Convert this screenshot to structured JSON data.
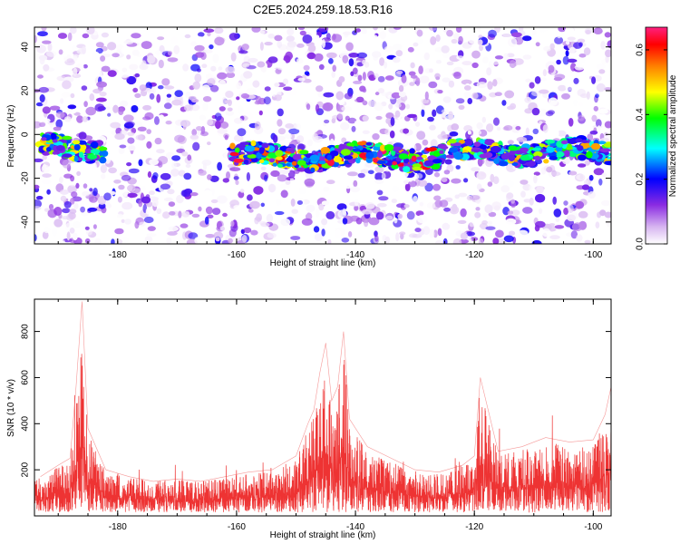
{
  "title": "C2E5.2024.259.18.53.R16",
  "chart_data": [
    {
      "type": "heatmap",
      "title": "C2E5.2024.259.18.53.R16",
      "xlabel": "Height of straight line (km)",
      "ylabel": "Frequency (Hz)",
      "xlim": [
        -194,
        -97
      ],
      "ylim": [
        -50,
        49
      ],
      "xticks": [
        -180,
        -160,
        -140,
        -120,
        -100
      ],
      "yticks": [
        -40,
        -20,
        0,
        20,
        40
      ],
      "colorbar": {
        "label": "Normalized spectral amplitude",
        "range": [
          0.0,
          0.67
        ],
        "ticks": [
          0.0,
          0.2,
          0.4,
          0.6
        ],
        "tick_labels": [
          "0.0",
          "0.2",
          "0.4",
          "0.6"
        ],
        "colors": [
          "#ffffff",
          "#d6b3f0",
          "#8a2be2",
          "#0000ff",
          "#00ffff",
          "#00ff00",
          "#ffff00",
          "#ff8000",
          "#ff0000",
          "#ff2080"
        ]
      },
      "bands": [
        {
          "x": [
            -193,
            -182
          ],
          "freq": -6,
          "peak": 0.42
        },
        {
          "x": [
            -161,
            -125
          ],
          "freq": -10,
          "peak": 0.55
        },
        {
          "x": [
            -124,
            -97
          ],
          "freq": -8,
          "peak": 0.42
        }
      ]
    },
    {
      "type": "line",
      "xlabel": "Height of straight line (km)",
      "ylabel": "SNR (10 * v/v)",
      "xlim": [
        -194,
        -97
      ],
      "ylim": [
        0,
        940
      ],
      "xticks": [
        -180,
        -160,
        -140,
        -120,
        -100
      ],
      "yticks": [
        200,
        400,
        600,
        800
      ],
      "color": "#ee3333",
      "x": [
        -193,
        -190,
        -188,
        -187,
        -186,
        -185,
        -182,
        -178,
        -174,
        -170,
        -166,
        -162,
        -158,
        -154,
        -150,
        -148,
        -147,
        -146,
        -145,
        -144,
        -143,
        -142,
        -141,
        -138,
        -134,
        -130,
        -126,
        -122,
        -120,
        -119,
        -116,
        -112,
        -108,
        -104,
        -100,
        -98,
        -97
      ],
      "values": [
        170,
        220,
        250,
        560,
        930,
        380,
        200,
        170,
        150,
        160,
        150,
        170,
        190,
        200,
        260,
        400,
        460,
        620,
        750,
        500,
        560,
        800,
        420,
        300,
        250,
        200,
        190,
        220,
        260,
        600,
        280,
        300,
        340,
        320,
        330,
        440,
        560
      ]
    }
  ]
}
